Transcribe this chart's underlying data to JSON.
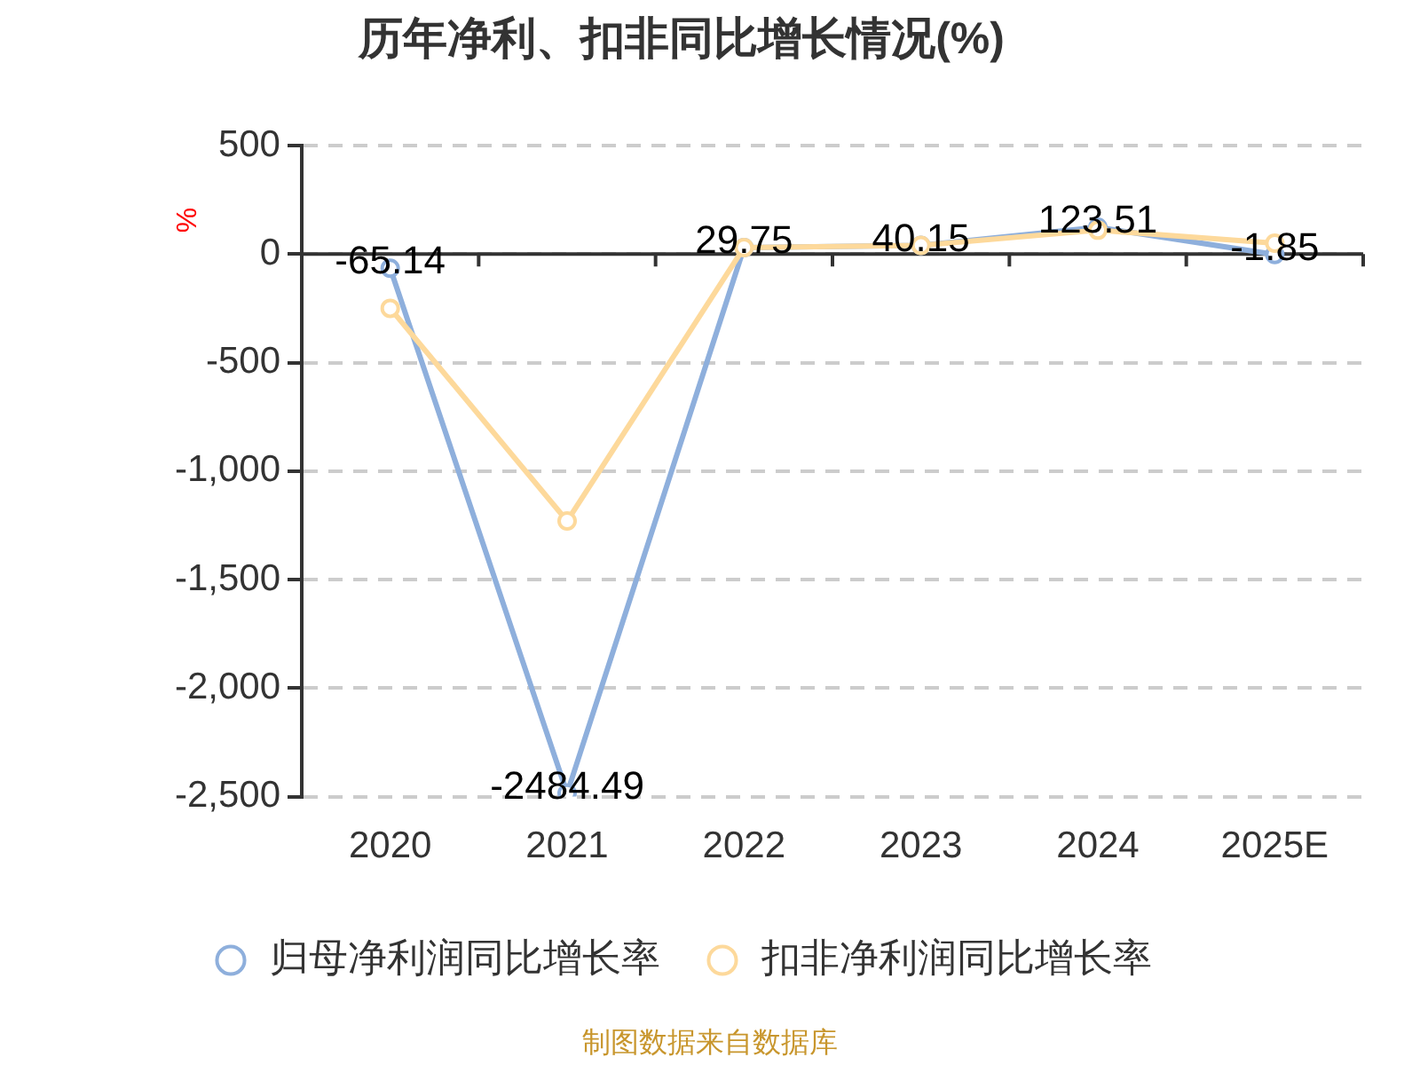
{
  "chart_data": {
    "type": "line",
    "title": "历年净利、扣非同比增长情况(%)",
    "ylabel": "%",
    "categories": [
      "2020",
      "2021",
      "2022",
      "2023",
      "2024",
      "2025E"
    ],
    "series": [
      {
        "name": "归母净利润同比增长率",
        "color": "#8eafdc",
        "values": [
          -65.14,
          -2484.49,
          29.75,
          40.15,
          123.51,
          -1.85
        ],
        "value_labels": [
          "-65.14",
          "-2484.49",
          "29.75",
          "40.15",
          "123.51",
          "-1.85"
        ]
      },
      {
        "name": "扣非净利润同比增长率",
        "color": "#fdd99b",
        "values": [
          -250,
          -1230,
          30,
          40,
          110,
          50
        ]
      }
    ],
    "ylim": [
      -2500,
      500
    ],
    "yticks": [
      500,
      0,
      -500,
      {
        "value": -1000,
        "label": "-1,000"
      },
      {
        "value": -1500,
        "label": "-1,500"
      },
      {
        "value": -2000,
        "label": "-2,000"
      },
      {
        "value": -2500,
        "label": "-2,500"
      }
    ],
    "grid": "y",
    "legend": "bottom",
    "marker": "circle",
    "line_style": "solid",
    "annotations": [
      "制图数据来自数据库"
    ]
  }
}
